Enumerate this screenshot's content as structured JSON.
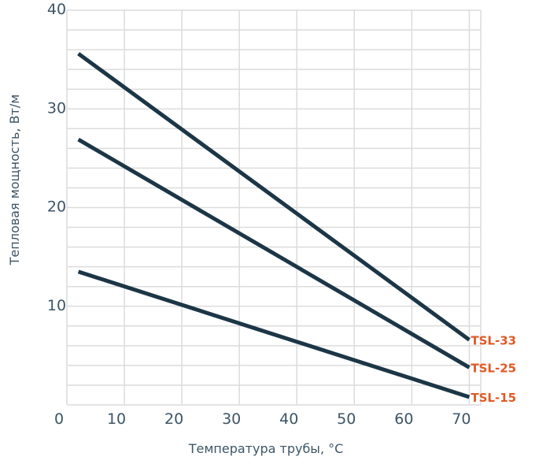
{
  "chart_data": {
    "type": "line",
    "xlabel": "Температура трубы, °C",
    "ylabel": "Тепловая мощность, Вт/м",
    "xlim": [
      0,
      72
    ],
    "ylim": [
      0,
      40
    ],
    "x_ticks": [
      "0",
      "10",
      "20",
      "30",
      "40",
      "50",
      "60",
      "70"
    ],
    "y_ticks": [
      "10",
      "20",
      "30",
      "40"
    ],
    "grid": "on",
    "series": [
      {
        "name": "TSL-33",
        "x": [
          2,
          70
        ],
        "y": [
          35.6,
          6.6
        ]
      },
      {
        "name": "TSL-25",
        "x": [
          2,
          70
        ],
        "y": [
          26.9,
          3.8
        ]
      },
      {
        "name": "TSL-15",
        "x": [
          2,
          70
        ],
        "y": [
          13.5,
          0.8
        ]
      }
    ],
    "colors": {
      "line": "#1c3646",
      "label": "#e05a26",
      "grid": "#dcdcdc",
      "text": "#3d5566"
    }
  }
}
